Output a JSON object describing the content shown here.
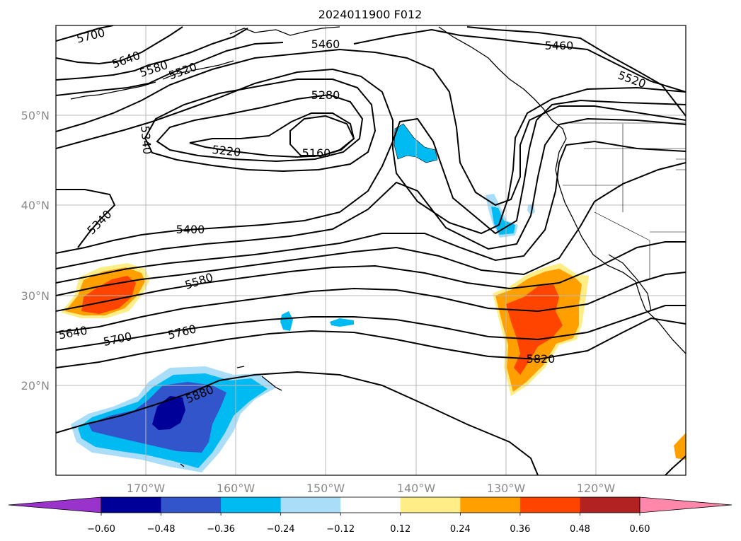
{
  "chart_data": {
    "type": "map",
    "title": "2024011900 F012",
    "region": {
      "lon_range": [
        -180,
        -110
      ],
      "lat_range": [
        10,
        60
      ]
    },
    "grid": true,
    "latitude_labels": [
      {
        "lat": 50,
        "text": "50°N"
      },
      {
        "lat": 40,
        "text": "40°N"
      },
      {
        "lat": 30,
        "text": "30°N"
      },
      {
        "lat": 20,
        "text": "20°N"
      }
    ],
    "longitude_labels": [
      {
        "lon": -170,
        "text": "170°W"
      },
      {
        "lon": -160,
        "text": "160°W"
      },
      {
        "lon": -150,
        "text": "150°W"
      },
      {
        "lon": -140,
        "text": "140°W"
      },
      {
        "lon": -130,
        "text": "130°W"
      },
      {
        "lon": -120,
        "text": "120°W"
      }
    ],
    "contour_labels": [
      "5700",
      "5640",
      "5580",
      "5520",
      "5460",
      "5460",
      "5520",
      "5280",
      "5340",
      "5220",
      "5160",
      "5340",
      "5400",
      "5580",
      "5640",
      "5700",
      "5760",
      "5820",
      "5880"
    ],
    "colorbar": {
      "orientation": "horizontal",
      "extend": "both",
      "ticks": [
        "−0.60",
        "−0.48",
        "−0.36",
        "−0.24",
        "−0.12",
        "0.12",
        "0.24",
        "0.36",
        "0.48",
        "0.60"
      ],
      "colors": [
        "#9933cc",
        "#000099",
        "#3355cc",
        "#00bbf2",
        "#aaddf8",
        "#ffffff",
        "#ffee88",
        "#ffa000",
        "#ff4400",
        "#b22222",
        "#ff88aa"
      ]
    }
  }
}
